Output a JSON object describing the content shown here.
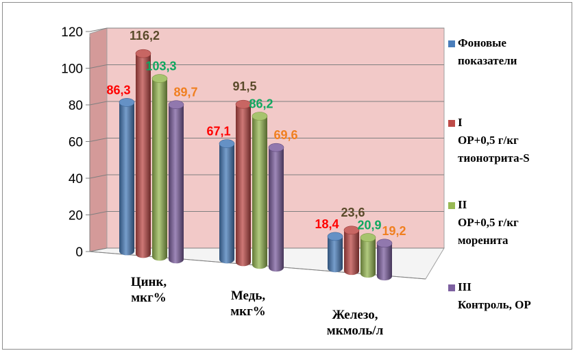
{
  "chart_data": {
    "type": "bar",
    "title": "",
    "xlabel": "",
    "ylabel": "",
    "ylim": [
      0,
      120
    ],
    "yticks": [
      "0",
      "20",
      "40",
      "60",
      "80",
      "100",
      "120"
    ],
    "grid": true,
    "legend_position": "right",
    "categories": [
      [
        "Цинк,",
        "мкг%"
      ],
      [
        "Медь,",
        "мкг%"
      ],
      [
        "Железо,",
        "мкмоль/л"
      ]
    ],
    "series": [
      {
        "name": [
          "Фоновые",
          "показатели"
        ],
        "color": "#4a7ebb",
        "label_color": "#ff0000",
        "values": [
          86.3,
          67.1,
          18.4
        ],
        "labels": [
          "86,3",
          "67,1",
          "18,4"
        ]
      },
      {
        "name": [
          "I",
          "ОР+0,5 г/кг",
          "тионотрита-S"
        ],
        "color": "#be4b48",
        "label_color": "#5a4a2a",
        "values": [
          116.2,
          91.5,
          23.6
        ],
        "labels": [
          "116,2",
          "91,5",
          "23,6"
        ]
      },
      {
        "name": [
          "II",
          "ОР+0,5 г/кг",
          "моренита"
        ],
        "color": "#98b954",
        "label_color": "#10a860",
        "values": [
          103.3,
          86.2,
          20.9
        ],
        "labels": [
          "103,3",
          "86,2",
          "20,9"
        ]
      },
      {
        "name": [
          "III",
          "Контроль, ОР"
        ],
        "color": "#7d60a0",
        "label_color": "#f07f20",
        "values": [
          89.7,
          69.6,
          19.2
        ],
        "labels": [
          "89,7",
          "69,6",
          "19,2"
        ]
      }
    ],
    "colors": {
      "back_wall": "#f2c9c8",
      "side_wall": "#d49a99",
      "gridline": "#7f7f7f"
    }
  }
}
